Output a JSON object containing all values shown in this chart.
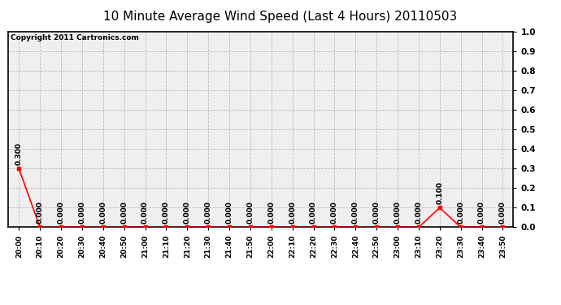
{
  "title": "10 Minute Average Wind Speed (Last 4 Hours) 20110503",
  "copyright_text": "Copyright 2011 Cartronics.com",
  "x_labels": [
    "20:00",
    "20:10",
    "20:20",
    "20:30",
    "20:40",
    "20:50",
    "21:00",
    "21:10",
    "21:20",
    "21:30",
    "21:40",
    "21:50",
    "22:00",
    "22:10",
    "22:20",
    "22:30",
    "22:40",
    "22:50",
    "23:00",
    "23:10",
    "23:20",
    "23:30",
    "23:40",
    "23:50"
  ],
  "y_values": [
    0.3,
    0.0,
    0.0,
    0.0,
    0.0,
    0.0,
    0.0,
    0.0,
    0.0,
    0.0,
    0.0,
    0.0,
    0.0,
    0.0,
    0.0,
    0.0,
    0.0,
    0.0,
    0.0,
    0.0,
    0.1,
    0.0,
    0.0,
    0.0
  ],
  "line_color": "#ff0000",
  "marker_color": "#ff0000",
  "bg_color": "#ffffff",
  "plot_bg_color": "#efefef",
  "grid_color": "#bbbbbb",
  "ylim": [
    0.0,
    1.0
  ],
  "yticks": [
    0.0,
    0.1,
    0.2,
    0.3,
    0.4,
    0.5,
    0.6,
    0.7,
    0.8,
    0.9,
    1.0
  ],
  "title_fontsize": 11,
  "label_fontsize": 6.5,
  "annotation_fontsize": 6.5,
  "copyright_fontsize": 6.5
}
